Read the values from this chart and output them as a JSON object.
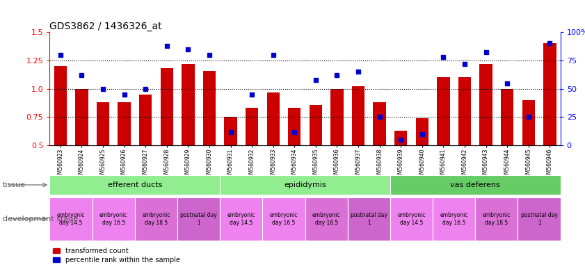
{
  "title": "GDS3862 / 1436326_at",
  "samples": [
    "GSM560923",
    "GSM560924",
    "GSM560925",
    "GSM560926",
    "GSM560927",
    "GSM560928",
    "GSM560929",
    "GSM560930",
    "GSM560931",
    "GSM560932",
    "GSM560933",
    "GSM560934",
    "GSM560935",
    "GSM560936",
    "GSM560937",
    "GSM560938",
    "GSM560939",
    "GSM560940",
    "GSM560941",
    "GSM560942",
    "GSM560943",
    "GSM560944",
    "GSM560945",
    "GSM560946"
  ],
  "transformed_count": [
    1.2,
    1.0,
    0.88,
    0.88,
    0.95,
    1.18,
    1.22,
    1.16,
    0.75,
    0.83,
    0.97,
    0.83,
    0.86,
    1.0,
    1.02,
    0.88,
    0.63,
    0.74,
    1.1,
    1.1,
    1.22,
    1.0,
    0.9,
    1.4
  ],
  "percentile_rank": [
    80,
    62,
    50,
    45,
    50,
    88,
    85,
    80,
    12,
    45,
    80,
    12,
    58,
    62,
    65,
    25,
    5,
    10,
    78,
    72,
    82,
    55,
    25,
    90
  ],
  "y_min": 0.5,
  "y_max": 1.5,
  "y_ticks_left": [
    0.5,
    0.75,
    1.0,
    1.25,
    1.5
  ],
  "y_ticks_right": [
    0,
    25,
    50,
    75,
    100
  ],
  "bar_color": "#cc0000",
  "dot_color": "#0000cc",
  "bg_color": "#ffffff",
  "bar_width": 0.6,
  "tissue_groups": [
    {
      "label": "efferent ducts",
      "start": 0,
      "end": 7,
      "color": "#90ee90"
    },
    {
      "label": "epididymis",
      "start": 8,
      "end": 15,
      "color": "#90ee90"
    },
    {
      "label": "vas deferens",
      "start": 16,
      "end": 23,
      "color": "#66cc66"
    }
  ],
  "dev_groups": [
    {
      "label": "embryonic\nday 14.5",
      "start": 0,
      "end": 1,
      "color": "#ee82ee"
    },
    {
      "label": "embryonic\nday 16.5",
      "start": 2,
      "end": 3,
      "color": "#ee82ee"
    },
    {
      "label": "embryonic\nday 18.5",
      "start": 4,
      "end": 5,
      "color": "#da70d6"
    },
    {
      "label": "postnatal day\n1",
      "start": 6,
      "end": 7,
      "color": "#cc66cc"
    },
    {
      "label": "embryonic\nday 14.5",
      "start": 8,
      "end": 9,
      "color": "#ee82ee"
    },
    {
      "label": "embryonic\nday 16.5",
      "start": 10,
      "end": 11,
      "color": "#ee82ee"
    },
    {
      "label": "embryonic\nday 18.5",
      "start": 12,
      "end": 13,
      "color": "#da70d6"
    },
    {
      "label": "postnatal day\n1",
      "start": 14,
      "end": 15,
      "color": "#cc66cc"
    },
    {
      "label": "embryonic\nday 14.5",
      "start": 16,
      "end": 17,
      "color": "#ee82ee"
    },
    {
      "label": "embryonic\nday 16.5",
      "start": 18,
      "end": 19,
      "color": "#ee82ee"
    },
    {
      "label": "embryonic\nday 18.5",
      "start": 20,
      "end": 21,
      "color": "#da70d6"
    },
    {
      "label": "postnatal day\n1",
      "start": 22,
      "end": 23,
      "color": "#cc66cc"
    }
  ]
}
